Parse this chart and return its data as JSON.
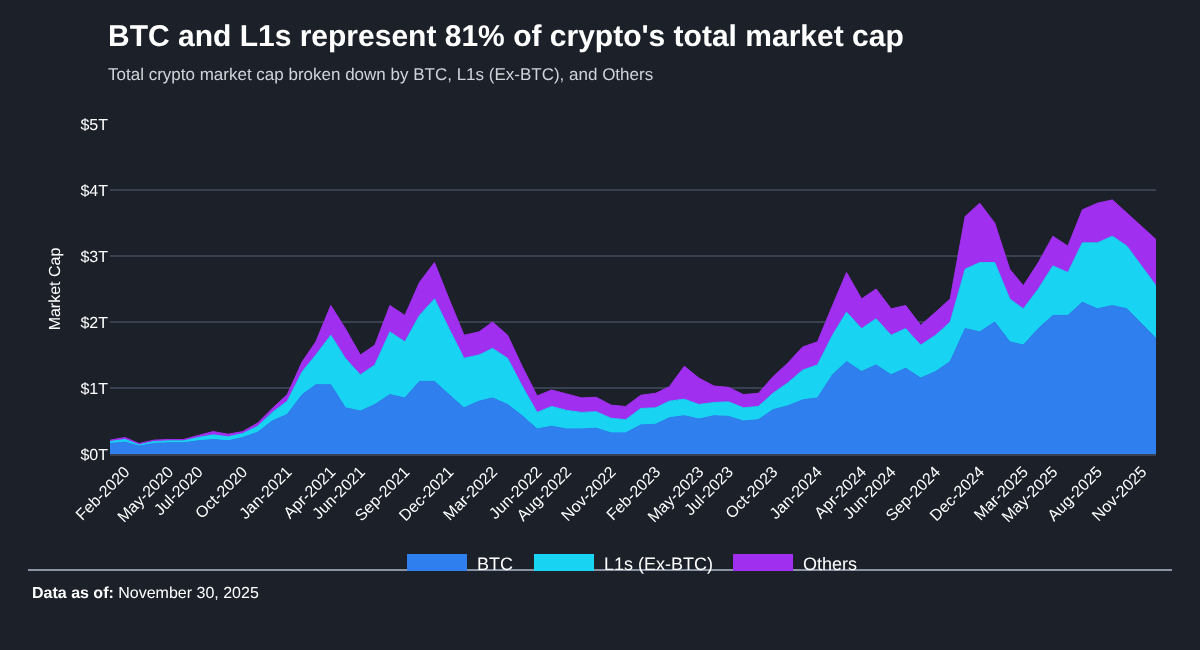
{
  "chart_data": {
    "type": "area",
    "stacked": true,
    "title": "BTC and L1s represent 81% of crypto's total market cap",
    "subtitle": "Total crypto market cap broken down by BTC, L1s (Ex-BTC), and Others",
    "ylabel": "Market Cap",
    "annotations": [
      "Data as of: November 30, 2025"
    ],
    "x": [
      "2020-01-01",
      "2020-02-01",
      "2020-03-01",
      "2020-04-01",
      "2020-05-01",
      "2020-06-01",
      "2020-07-01",
      "2020-08-01",
      "2020-09-01",
      "2020-10-01",
      "2020-11-01",
      "2020-12-01",
      "2021-01-01",
      "2021-02-01",
      "2021-03-01",
      "2021-04-01",
      "2021-05-01",
      "2021-06-01",
      "2021-07-01",
      "2021-08-01",
      "2021-09-01",
      "2021-10-01",
      "2021-11-01",
      "2021-12-01",
      "2022-01-01",
      "2022-02-01",
      "2022-03-01",
      "2022-04-01",
      "2022-05-01",
      "2022-06-01",
      "2022-07-01",
      "2022-08-01",
      "2022-09-01",
      "2022-10-01",
      "2022-11-01",
      "2022-12-01",
      "2023-01-01",
      "2023-02-01",
      "2023-03-01",
      "2023-04-01",
      "2023-05-01",
      "2023-06-01",
      "2023-07-01",
      "2023-08-01",
      "2023-09-01",
      "2023-10-01",
      "2023-11-01",
      "2023-12-01",
      "2024-01-01",
      "2024-02-01",
      "2024-03-01",
      "2024-04-01",
      "2024-05-01",
      "2024-06-01",
      "2024-07-01",
      "2024-08-01",
      "2024-09-01",
      "2024-10-01",
      "2024-11-01",
      "2024-12-01",
      "2025-01-01",
      "2025-02-01",
      "2025-03-01",
      "2025-04-01",
      "2025-05-01",
      "2025-06-01",
      "2025-07-01",
      "2025-08-01",
      "2025-09-01",
      "2025-10-01",
      "2025-11-30"
    ],
    "series": [
      {
        "name": "BTC",
        "color": "#2f7fef",
        "values": [
          0.16,
          0.18,
          0.12,
          0.16,
          0.17,
          0.17,
          0.2,
          0.22,
          0.2,
          0.25,
          0.33,
          0.5,
          0.6,
          0.9,
          1.05,
          1.05,
          0.7,
          0.65,
          0.75,
          0.9,
          0.85,
          1.1,
          1.1,
          0.9,
          0.7,
          0.8,
          0.85,
          0.75,
          0.58,
          0.38,
          0.42,
          0.38,
          0.38,
          0.39,
          0.32,
          0.32,
          0.44,
          0.45,
          0.55,
          0.58,
          0.53,
          0.58,
          0.57,
          0.5,
          0.52,
          0.67,
          0.73,
          0.82,
          0.85,
          1.2,
          1.4,
          1.25,
          1.35,
          1.2,
          1.3,
          1.15,
          1.25,
          1.4,
          1.9,
          1.85,
          2.0,
          1.7,
          1.65,
          1.9,
          2.1,
          2.1,
          2.3,
          2.2,
          2.25,
          2.2,
          1.75
        ]
      },
      {
        "name": "L1s (Ex-BTC)",
        "color": "#19d3f3",
        "values": [
          0.03,
          0.04,
          0.02,
          0.03,
          0.03,
          0.03,
          0.05,
          0.07,
          0.06,
          0.06,
          0.09,
          0.13,
          0.2,
          0.35,
          0.45,
          0.75,
          0.75,
          0.55,
          0.6,
          0.95,
          0.85,
          1.0,
          1.25,
          1.0,
          0.75,
          0.7,
          0.75,
          0.7,
          0.45,
          0.25,
          0.3,
          0.28,
          0.25,
          0.25,
          0.22,
          0.2,
          0.25,
          0.25,
          0.25,
          0.25,
          0.22,
          0.2,
          0.22,
          0.2,
          0.2,
          0.25,
          0.35,
          0.45,
          0.5,
          0.6,
          0.75,
          0.65,
          0.7,
          0.6,
          0.6,
          0.5,
          0.55,
          0.6,
          0.9,
          1.05,
          0.9,
          0.65,
          0.55,
          0.6,
          0.75,
          0.65,
          0.9,
          1.0,
          1.05,
          0.95,
          0.8
        ]
      },
      {
        "name": "Others",
        "color": "#a12ff0",
        "values": [
          0.02,
          0.03,
          0.02,
          0.02,
          0.02,
          0.02,
          0.03,
          0.05,
          0.04,
          0.03,
          0.05,
          0.06,
          0.1,
          0.15,
          0.2,
          0.45,
          0.45,
          0.3,
          0.3,
          0.4,
          0.4,
          0.5,
          0.55,
          0.45,
          0.35,
          0.35,
          0.4,
          0.35,
          0.3,
          0.25,
          0.25,
          0.25,
          0.22,
          0.22,
          0.2,
          0.2,
          0.2,
          0.22,
          0.22,
          0.5,
          0.4,
          0.25,
          0.22,
          0.2,
          0.2,
          0.25,
          0.3,
          0.35,
          0.35,
          0.45,
          0.6,
          0.45,
          0.45,
          0.4,
          0.35,
          0.3,
          0.35,
          0.35,
          0.8,
          0.9,
          0.6,
          0.45,
          0.35,
          0.4,
          0.45,
          0.4,
          0.5,
          0.6,
          0.55,
          0.5,
          0.7
        ]
      }
    ],
    "xlim": [
      "2020-01-01",
      "2025-11-30"
    ],
    "xticks": [
      {
        "value": "2020-02-01",
        "label": "Feb-2020"
      },
      {
        "value": "2020-05-01",
        "label": "May-2020"
      },
      {
        "value": "2020-07-01",
        "label": "Jul-2020"
      },
      {
        "value": "2020-10-01",
        "label": "Oct-2020"
      },
      {
        "value": "2021-01-01",
        "label": "Jan-2021"
      },
      {
        "value": "2021-04-01",
        "label": "Apr-2021"
      },
      {
        "value": "2021-06-01",
        "label": "Jun-2021"
      },
      {
        "value": "2021-09-01",
        "label": "Sep-2021"
      },
      {
        "value": "2021-12-01",
        "label": "Dec-2021"
      },
      {
        "value": "2022-03-01",
        "label": "Mar-2022"
      },
      {
        "value": "2022-06-01",
        "label": "Jun-2022"
      },
      {
        "value": "2022-08-01",
        "label": "Aug-2022"
      },
      {
        "value": "2022-11-01",
        "label": "Nov-2022"
      },
      {
        "value": "2023-02-01",
        "label": "Feb-2023"
      },
      {
        "value": "2023-05-01",
        "label": "May-2023"
      },
      {
        "value": "2023-07-01",
        "label": "Jul-2023"
      },
      {
        "value": "2023-10-01",
        "label": "Oct-2023"
      },
      {
        "value": "2024-01-01",
        "label": "Jan-2024"
      },
      {
        "value": "2024-04-01",
        "label": "Apr-2024"
      },
      {
        "value": "2024-06-01",
        "label": "Jun-2024"
      },
      {
        "value": "2024-09-01",
        "label": "Sep-2024"
      },
      {
        "value": "2024-12-01",
        "label": "Dec-2024"
      },
      {
        "value": "2025-03-01",
        "label": "Mar-2025"
      },
      {
        "value": "2025-05-01",
        "label": "May-2025"
      },
      {
        "value": "2025-08-01",
        "label": "Aug-2025"
      },
      {
        "value": "2025-11-01",
        "label": "Nov-2025"
      }
    ],
    "ylim": [
      0,
      5
    ],
    "yticks": [
      {
        "value": 0,
        "label": "$0T"
      },
      {
        "value": 1,
        "label": "$1T"
      },
      {
        "value": 2,
        "label": "$2T"
      },
      {
        "value": 3,
        "label": "$3T"
      },
      {
        "value": 4,
        "label": "$4T"
      },
      {
        "value": 5,
        "label": "$5T"
      }
    ],
    "grid": "y",
    "legend": "bottom"
  }
}
